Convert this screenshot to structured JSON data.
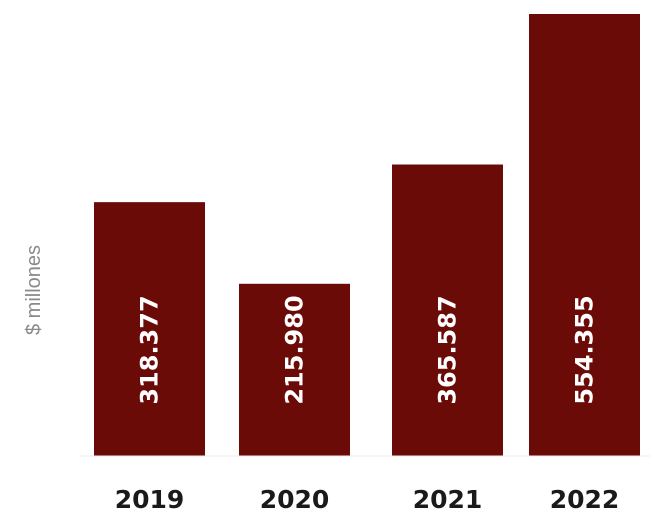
{
  "chart_data": {
    "type": "bar",
    "categories": [
      "2019",
      "2020",
      "2021",
      "2022"
    ],
    "values": [
      318377,
      215980,
      365587,
      554355
    ],
    "data_labels": [
      "318.377",
      "215.980",
      "365.587",
      "554.355"
    ],
    "title": "",
    "xlabel": "",
    "ylabel": "$ millones",
    "ylim": [
      0,
      554355
    ],
    "grid": false,
    "legend": "none",
    "colors": {
      "bar": "#6b0b07",
      "label": "#ffffff",
      "tick": "#1a1a1a",
      "axis_label": "#8a8a8a"
    }
  }
}
